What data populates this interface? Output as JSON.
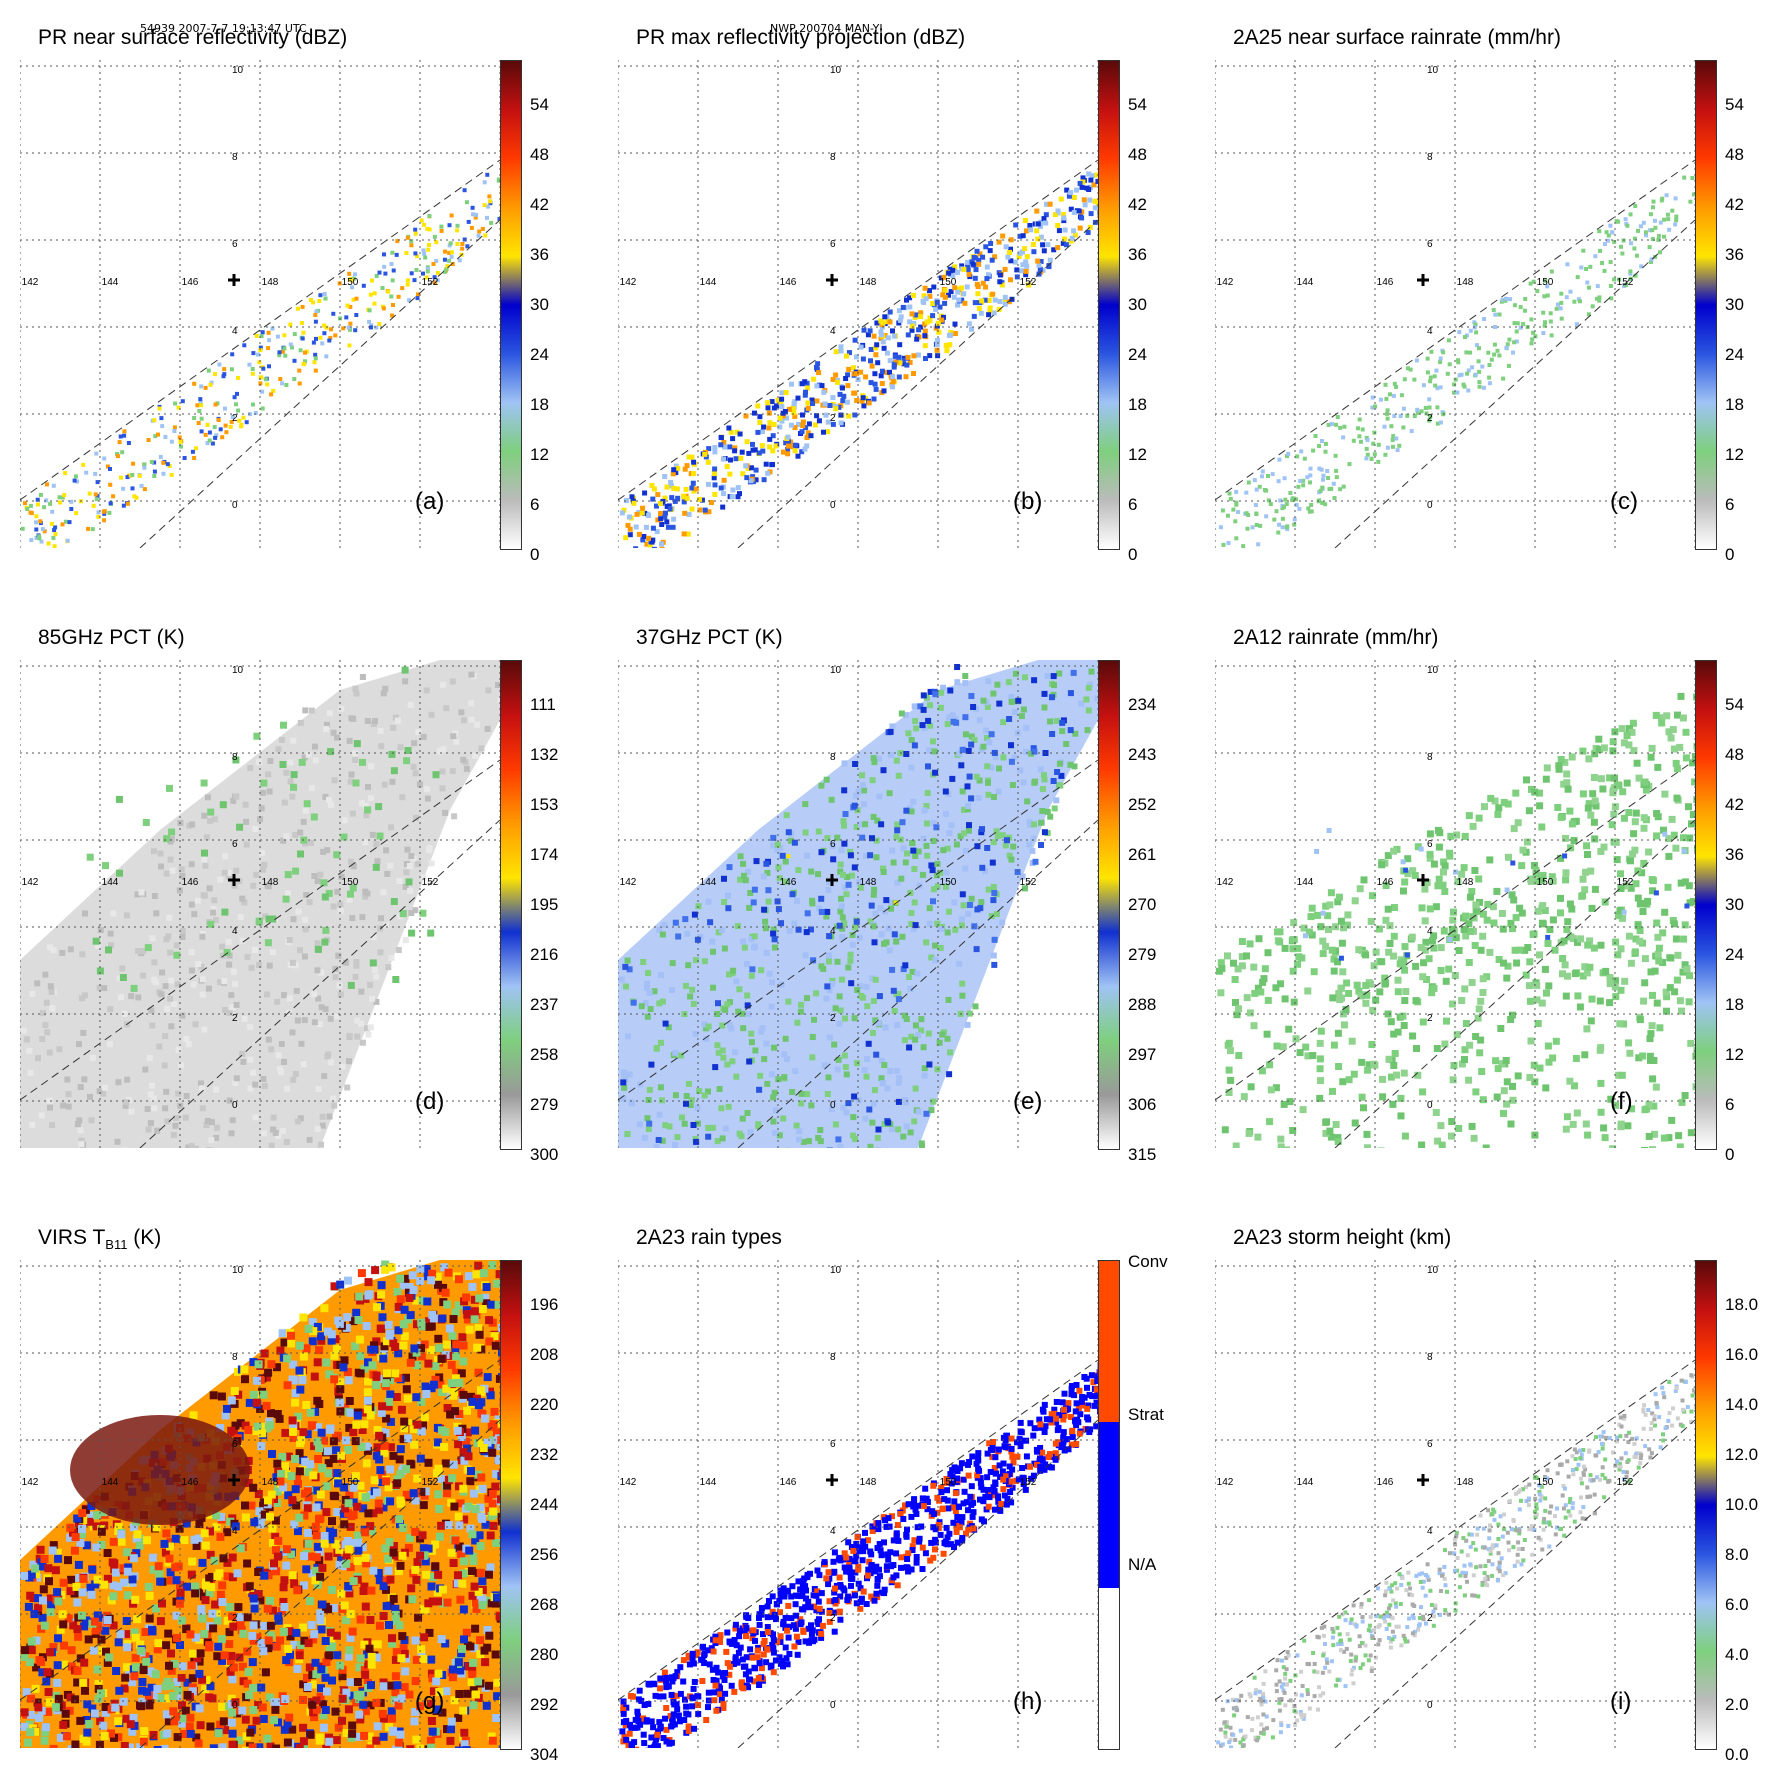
{
  "header": {
    "left": "54939 2007-7-7 19:13:47 UTC",
    "center": "NWP 200704 MAN-YI"
  },
  "axes": {
    "lon_labels": [
      "142",
      "144",
      "146",
      "148",
      "150",
      "152"
    ],
    "lat_labels": [
      "0",
      "2",
      "4",
      "6",
      "8",
      "10"
    ]
  },
  "panels": [
    {
      "id": "a",
      "title": "PR near surface reflectivity (dBZ)",
      "label": "(a)",
      "ticks": [
        "54",
        "48",
        "42",
        "36",
        "30",
        "24",
        "18",
        "12",
        "6",
        "0"
      ]
    },
    {
      "id": "b",
      "title": "PR max reflectivity projection (dBZ)",
      "label": "(b)",
      "ticks": [
        "54",
        "48",
        "42",
        "36",
        "30",
        "24",
        "18",
        "12",
        "6",
        "0"
      ]
    },
    {
      "id": "c",
      "title": "2A25 near surface rainrate (mm/hr)",
      "label": "(c)",
      "ticks": [
        "54",
        "48",
        "42",
        "36",
        "30",
        "24",
        "18",
        "12",
        "6",
        "0"
      ]
    },
    {
      "id": "d",
      "title": "85GHz PCT (K)",
      "label": "(d)",
      "ticks": [
        "111",
        "132",
        "153",
        "174",
        "195",
        "216",
        "237",
        "258",
        "279",
        "300"
      ]
    },
    {
      "id": "e",
      "title": "37GHz PCT (K)",
      "label": "(e)",
      "ticks": [
        "234",
        "243",
        "252",
        "261",
        "270",
        "279",
        "288",
        "297",
        "306",
        "315"
      ]
    },
    {
      "id": "f",
      "title": "2A12 rainrate (mm/hr)",
      "label": "(f)",
      "ticks": [
        "54",
        "48",
        "42",
        "36",
        "30",
        "24",
        "18",
        "12",
        "6",
        "0"
      ]
    },
    {
      "id": "g",
      "title": "VIRS T",
      "title_sub": "B11",
      "title_suffix": " (K)",
      "label": "(g)",
      "ticks": [
        "196",
        "208",
        "220",
        "232",
        "244",
        "256",
        "268",
        "280",
        "292",
        "304"
      ]
    },
    {
      "id": "h",
      "title": "2A23 rain types",
      "label": "(h)",
      "ticks": [
        "Conv",
        "Strat",
        "N/A"
      ]
    },
    {
      "id": "i",
      "title": "2A23 storm height (km)",
      "label": "(i)",
      "ticks": [
        "18.0",
        "16.0",
        "14.0",
        "12.0",
        "10.0",
        "8.0",
        "6.0",
        "4.0",
        "2.0",
        "0.0"
      ]
    }
  ],
  "colors": {
    "stops_reflect": [
      "#ffffff",
      "#bbbbbb",
      "#7ecf7e",
      "#9fc3f4",
      "#2a55e0",
      "#0000cc",
      "#ffe500",
      "#ff9a00",
      "#ff3a00",
      "#c41010",
      "#5a0a0a"
    ],
    "stops_gray": [
      "#ffffff",
      "#999999",
      "#7ecf7e",
      "#9fc3f4",
      "#1030d0",
      "#ffe500",
      "#ff9a00",
      "#ff3a00",
      "#c41010",
      "#5a0a0a"
    ],
    "stops_types": [
      "#ffffff",
      "#0000ff",
      "#ff4a00"
    ]
  }
}
